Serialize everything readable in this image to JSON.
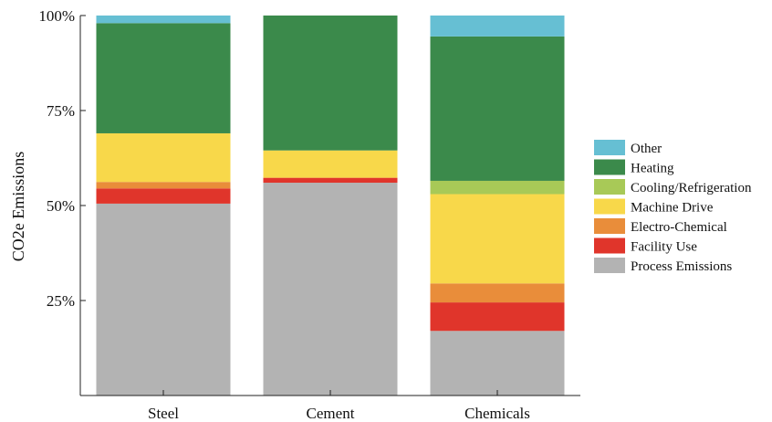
{
  "chart_data": {
    "type": "bar",
    "stacked": true,
    "categories": [
      "Steel",
      "Cement",
      "Chemicals"
    ],
    "ylabel": "CO2e Emissions",
    "xlabel": "",
    "ylim": [
      0,
      100
    ],
    "yticks": [
      25,
      50,
      75,
      100
    ],
    "ytick_labels": [
      "25%",
      "50%",
      "75%",
      "100%"
    ],
    "legend_position": "right",
    "grid": false,
    "series": [
      {
        "name": "Process Emissions",
        "color": "#b3b3b3",
        "values": [
          50.5,
          56,
          17
        ]
      },
      {
        "name": "Facility Use",
        "color": "#e0352b",
        "values": [
          4,
          1.3,
          7.5
        ]
      },
      {
        "name": "Electro-Chemical",
        "color": "#e98d3a",
        "values": [
          1.7,
          0,
          5
        ]
      },
      {
        "name": "Machine Drive",
        "color": "#f8d84a",
        "values": [
          12.8,
          7.2,
          23.5
        ]
      },
      {
        "name": "Cooling/Refrigeration",
        "color": "#a8c957",
        "values": [
          0,
          0,
          3.5
        ]
      },
      {
        "name": "Heating",
        "color": "#3b8a4b",
        "values": [
          29,
          35.5,
          38
        ]
      },
      {
        "name": "Other",
        "color": "#66bfd3",
        "values": [
          2,
          0,
          5.5
        ]
      }
    ],
    "legend_order": [
      "Other",
      "Heating",
      "Cooling/Refrigeration",
      "Machine Drive",
      "Electro-Chemical",
      "Facility Use",
      "Process Emissions"
    ]
  }
}
